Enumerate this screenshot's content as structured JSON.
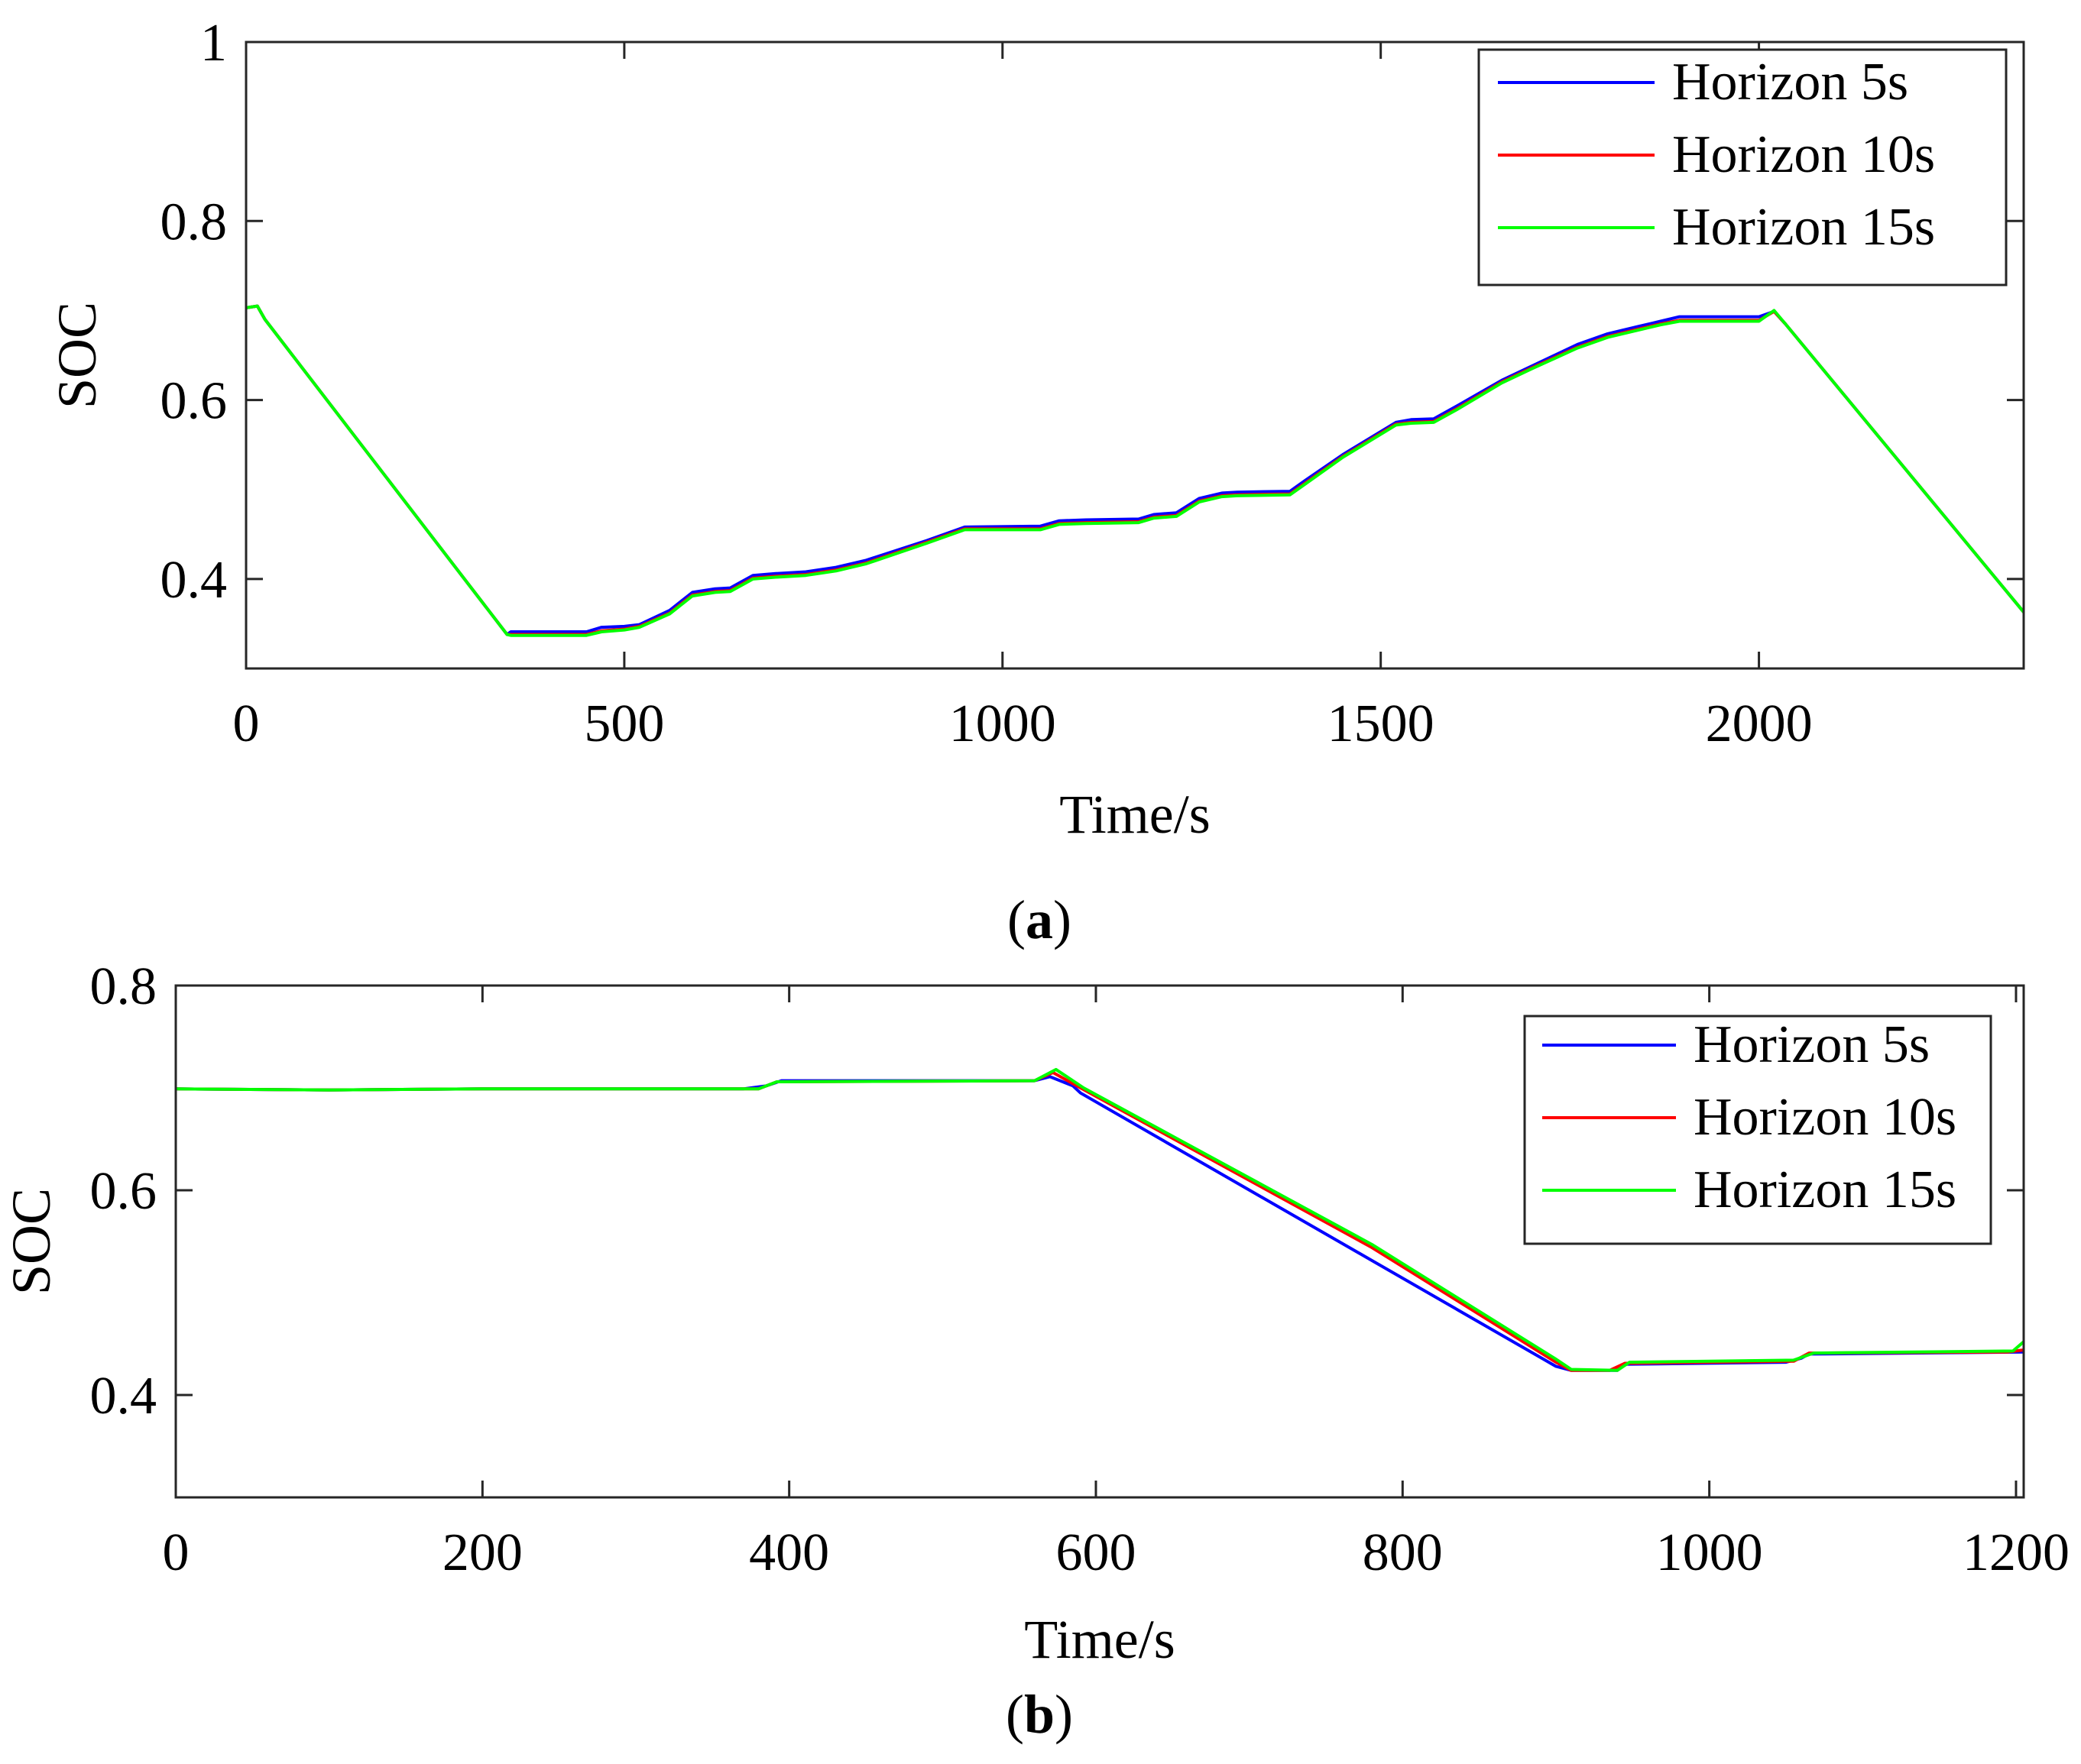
{
  "figure": {
    "caption_a": {
      "open": "(",
      "letter": "a",
      "close": ")"
    },
    "caption_b": {
      "open": "(",
      "letter": "b",
      "close": ")"
    }
  },
  "chart_data": [
    {
      "type": "line",
      "panel": "a",
      "xlabel": "Time/s",
      "ylabel": "SOC",
      "xlim": [
        0,
        2350
      ],
      "ylim": [
        0.3,
        1.0
      ],
      "xticks": [
        0,
        500,
        1000,
        1500,
        2000
      ],
      "xtick_labels": [
        "0",
        "500",
        "1000",
        "1500",
        "2000"
      ],
      "yticks": [
        0.4,
        0.6,
        0.8,
        1.0
      ],
      "ytick_labels": [
        "0.4",
        "0.6",
        "0.8",
        "1"
      ],
      "grid": false,
      "legend_position": "top-right",
      "series": [
        {
          "name": "Horizon 5s",
          "color": "#0000ff",
          "points": [
            [
              0,
              0.703
            ],
            [
              15,
              0.705
            ],
            [
              25,
              0.69
            ],
            [
              345,
              0.338
            ],
            [
              350,
              0.341
            ],
            [
              450,
              0.341
            ],
            [
              470,
              0.346
            ],
            [
              500,
              0.347
            ],
            [
              520,
              0.349
            ],
            [
              560,
              0.365
            ],
            [
              590,
              0.385
            ],
            [
              620,
              0.389
            ],
            [
              640,
              0.39
            ],
            [
              670,
              0.404
            ],
            [
              700,
              0.406
            ],
            [
              740,
              0.408
            ],
            [
              780,
              0.413
            ],
            [
              820,
              0.421
            ],
            [
              900,
              0.443
            ],
            [
              950,
              0.458
            ],
            [
              1050,
              0.459
            ],
            [
              1075,
              0.465
            ],
            [
              1110,
              0.466
            ],
            [
              1180,
              0.467
            ],
            [
              1200,
              0.472
            ],
            [
              1230,
              0.474
            ],
            [
              1260,
              0.49
            ],
            [
              1290,
              0.496
            ],
            [
              1310,
              0.497
            ],
            [
              1380,
              0.498
            ],
            [
              1400,
              0.51
            ],
            [
              1450,
              0.539
            ],
            [
              1520,
              0.575
            ],
            [
              1540,
              0.578
            ],
            [
              1570,
              0.579
            ],
            [
              1600,
              0.593
            ],
            [
              1660,
              0.622
            ],
            [
              1700,
              0.638
            ],
            [
              1760,
              0.662
            ],
            [
              1800,
              0.674
            ],
            [
              1840,
              0.682
            ],
            [
              1870,
              0.688
            ],
            [
              1895,
              0.693
            ],
            [
              2000,
              0.693
            ],
            [
              2020,
              0.699
            ],
            [
              2035,
              0.685
            ],
            [
              2350,
              0.363
            ]
          ]
        },
        {
          "name": "Horizon 10s",
          "color": "#ff0000",
          "points": [
            [
              0,
              0.703
            ],
            [
              15,
              0.705
            ],
            [
              25,
              0.69
            ],
            [
              345,
              0.338
            ],
            [
              350,
              0.338
            ],
            [
              450,
              0.338
            ],
            [
              470,
              0.342
            ],
            [
              500,
              0.344
            ],
            [
              520,
              0.347
            ],
            [
              560,
              0.362
            ],
            [
              590,
              0.382
            ],
            [
              620,
              0.386
            ],
            [
              640,
              0.387
            ],
            [
              670,
              0.401
            ],
            [
              700,
              0.403
            ],
            [
              740,
              0.405
            ],
            [
              780,
              0.41
            ],
            [
              820,
              0.418
            ],
            [
              900,
              0.441
            ],
            [
              950,
              0.456
            ],
            [
              1050,
              0.456
            ],
            [
              1075,
              0.462
            ],
            [
              1110,
              0.463
            ],
            [
              1180,
              0.464
            ],
            [
              1200,
              0.469
            ],
            [
              1230,
              0.471
            ],
            [
              1260,
              0.487
            ],
            [
              1290,
              0.493
            ],
            [
              1310,
              0.494
            ],
            [
              1380,
              0.495
            ],
            [
              1400,
              0.507
            ],
            [
              1450,
              0.537
            ],
            [
              1520,
              0.573
            ],
            [
              1540,
              0.575
            ],
            [
              1570,
              0.576
            ],
            [
              1600,
              0.59
            ],
            [
              1660,
              0.62
            ],
            [
              1700,
              0.636
            ],
            [
              1760,
              0.659
            ],
            [
              1800,
              0.671
            ],
            [
              1840,
              0.679
            ],
            [
              1870,
              0.685
            ],
            [
              1895,
              0.689
            ],
            [
              2000,
              0.689
            ],
            [
              2020,
              0.699
            ],
            [
              2035,
              0.685
            ],
            [
              2350,
              0.363
            ]
          ]
        },
        {
          "name": "Horizon 15s",
          "color": "#00ff00",
          "points": [
            [
              0,
              0.703
            ],
            [
              15,
              0.705
            ],
            [
              25,
              0.69
            ],
            [
              345,
              0.338
            ],
            [
              350,
              0.337
            ],
            [
              450,
              0.337
            ],
            [
              470,
              0.341
            ],
            [
              500,
              0.343
            ],
            [
              520,
              0.346
            ],
            [
              560,
              0.361
            ],
            [
              590,
              0.381
            ],
            [
              620,
              0.385
            ],
            [
              640,
              0.386
            ],
            [
              670,
              0.4
            ],
            [
              700,
              0.402
            ],
            [
              740,
              0.404
            ],
            [
              780,
              0.409
            ],
            [
              820,
              0.417
            ],
            [
              900,
              0.44
            ],
            [
              950,
              0.455
            ],
            [
              1050,
              0.455
            ],
            [
              1075,
              0.461
            ],
            [
              1110,
              0.462
            ],
            [
              1180,
              0.463
            ],
            [
              1200,
              0.468
            ],
            [
              1230,
              0.47
            ],
            [
              1260,
              0.486
            ],
            [
              1290,
              0.492
            ],
            [
              1310,
              0.493
            ],
            [
              1380,
              0.494
            ],
            [
              1400,
              0.506
            ],
            [
              1450,
              0.536
            ],
            [
              1520,
              0.572
            ],
            [
              1540,
              0.574
            ],
            [
              1570,
              0.575
            ],
            [
              1600,
              0.589
            ],
            [
              1660,
              0.619
            ],
            [
              1700,
              0.635
            ],
            [
              1760,
              0.658
            ],
            [
              1800,
              0.67
            ],
            [
              1840,
              0.678
            ],
            [
              1870,
              0.684
            ],
            [
              1895,
              0.688
            ],
            [
              2000,
              0.688
            ],
            [
              2020,
              0.7
            ],
            [
              2035,
              0.685
            ],
            [
              2350,
              0.363
            ]
          ]
        }
      ]
    },
    {
      "type": "line",
      "panel": "b",
      "xlabel": "Time/s",
      "ylabel": "SOC",
      "xlim": [
        0,
        1205
      ],
      "ylim": [
        0.3,
        0.8
      ],
      "xticks": [
        0,
        200,
        400,
        600,
        800,
        1000,
        1200
      ],
      "xtick_labels": [
        "0",
        "200",
        "400",
        "600",
        "800",
        "1000",
        "1200"
      ],
      "yticks": [
        0.4,
        0.6,
        0.8
      ],
      "ytick_labels": [
        "0.4",
        "0.6",
        "0.8"
      ],
      "grid": false,
      "legend_position": "top-right",
      "series": [
        {
          "name": "Horizon 5s",
          "color": "#0000ff",
          "points": [
            [
              0,
              0.699
            ],
            [
              100,
              0.698
            ],
            [
              200,
              0.699
            ],
            [
              370,
              0.699
            ],
            [
              385,
              0.702
            ],
            [
              395,
              0.707
            ],
            [
              560,
              0.707
            ],
            [
              570,
              0.711
            ],
            [
              585,
              0.702
            ],
            [
              590,
              0.695
            ],
            [
              900,
              0.428
            ],
            [
              910,
              0.424
            ],
            [
              940,
              0.424
            ],
            [
              945,
              0.43
            ],
            [
              1050,
              0.432
            ],
            [
              1060,
              0.436
            ],
            [
              1065,
              0.44
            ],
            [
              1205,
              0.442
            ]
          ]
        },
        {
          "name": "Horizon 10s",
          "color": "#ff0000",
          "points": [
            [
              0,
              0.699
            ],
            [
              100,
              0.698
            ],
            [
              200,
              0.699
            ],
            [
              380,
              0.699
            ],
            [
              392,
              0.706
            ],
            [
              560,
              0.707
            ],
            [
              572,
              0.715
            ],
            [
              590,
              0.7
            ],
            [
              780,
              0.544
            ],
            [
              900,
              0.432
            ],
            [
              910,
              0.424
            ],
            [
              935,
              0.424
            ],
            [
              945,
              0.431
            ],
            [
              1055,
              0.433
            ],
            [
              1065,
              0.441
            ],
            [
              1195,
              0.442
            ],
            [
              1205,
              0.444
            ]
          ]
        },
        {
          "name": "Horizon 15s",
          "color": "#00ff00",
          "points": [
            [
              0,
              0.699
            ],
            [
              100,
              0.698
            ],
            [
              200,
              0.699
            ],
            [
              380,
              0.699
            ],
            [
              392,
              0.706
            ],
            [
              560,
              0.707
            ],
            [
              574,
              0.718
            ],
            [
              592,
              0.7
            ],
            [
              780,
              0.547
            ],
            [
              900,
              0.435
            ],
            [
              910,
              0.425
            ],
            [
              940,
              0.424
            ],
            [
              948,
              0.432
            ],
            [
              1055,
              0.434
            ],
            [
              1068,
              0.441
            ],
            [
              1198,
              0.443
            ],
            [
              1205,
              0.452
            ]
          ]
        }
      ]
    }
  ]
}
